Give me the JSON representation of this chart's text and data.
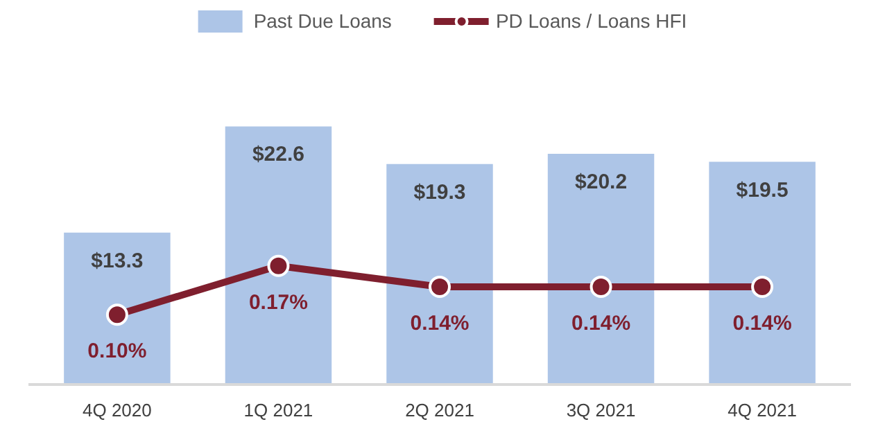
{
  "chart_data": {
    "type": "bar",
    "categories": [
      "4Q 2020",
      "1Q 2021",
      "2Q 2021",
      "3Q 2021",
      "4Q 2021"
    ],
    "series": [
      {
        "name": "Past Due Loans",
        "color": "#adc5e7",
        "values": [
          13.3,
          22.6,
          19.3,
          20.2,
          19.5
        ],
        "value_labels": [
          "$13.3",
          "$22.6",
          "$19.3",
          "$20.2",
          "$19.5"
        ]
      },
      {
        "name": "PD Loans / Loans HFI",
        "type": "line",
        "axis": "y2",
        "color": "#7f1f2e",
        "values": [
          0.1,
          0.17,
          0.14,
          0.14,
          0.14
        ],
        "value_labels": [
          "0.10%",
          "0.17%",
          "0.14%",
          "0.14%",
          "0.14%"
        ]
      }
    ],
    "ylim": [
      0,
      33
    ],
    "y2lim": [
      0,
      0.54
    ],
    "tick_labels": "x",
    "grid": false,
    "legend": "top",
    "marker": "circle",
    "line_style": "solid"
  }
}
